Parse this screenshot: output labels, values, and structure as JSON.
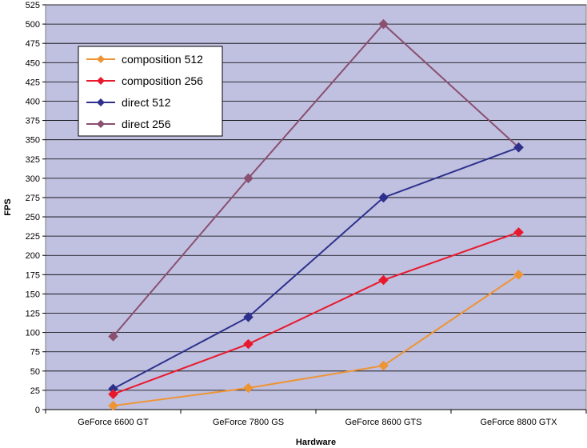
{
  "chart_data": {
    "type": "line",
    "title": "",
    "xlabel": "Hardware",
    "ylabel": "FPS",
    "ylim": [
      0,
      525
    ],
    "yticks": [
      0,
      25,
      50,
      75,
      100,
      125,
      150,
      175,
      200,
      225,
      250,
      275,
      300,
      325,
      350,
      375,
      400,
      425,
      450,
      475,
      500,
      525
    ],
    "categories": [
      "GeForce 6600 GT",
      "GeForce 7800 GS",
      "GeForce 8600 GTS",
      "GeForce 8800 GTX"
    ],
    "grid": true,
    "plot_background": "#c0c0e0",
    "legend_position": "top-left",
    "series": [
      {
        "name": "composition 512",
        "color": "#ee9433",
        "values": [
          5,
          28,
          57,
          175
        ]
      },
      {
        "name": "composition 256",
        "color": "#e8192c",
        "values": [
          20,
          85,
          168,
          230
        ]
      },
      {
        "name": "direct 512",
        "color": "#2e318c",
        "values": [
          27,
          120,
          275,
          340
        ]
      },
      {
        "name": "direct 256",
        "color": "#8a5070",
        "values": [
          95,
          300,
          500,
          340
        ]
      }
    ]
  }
}
